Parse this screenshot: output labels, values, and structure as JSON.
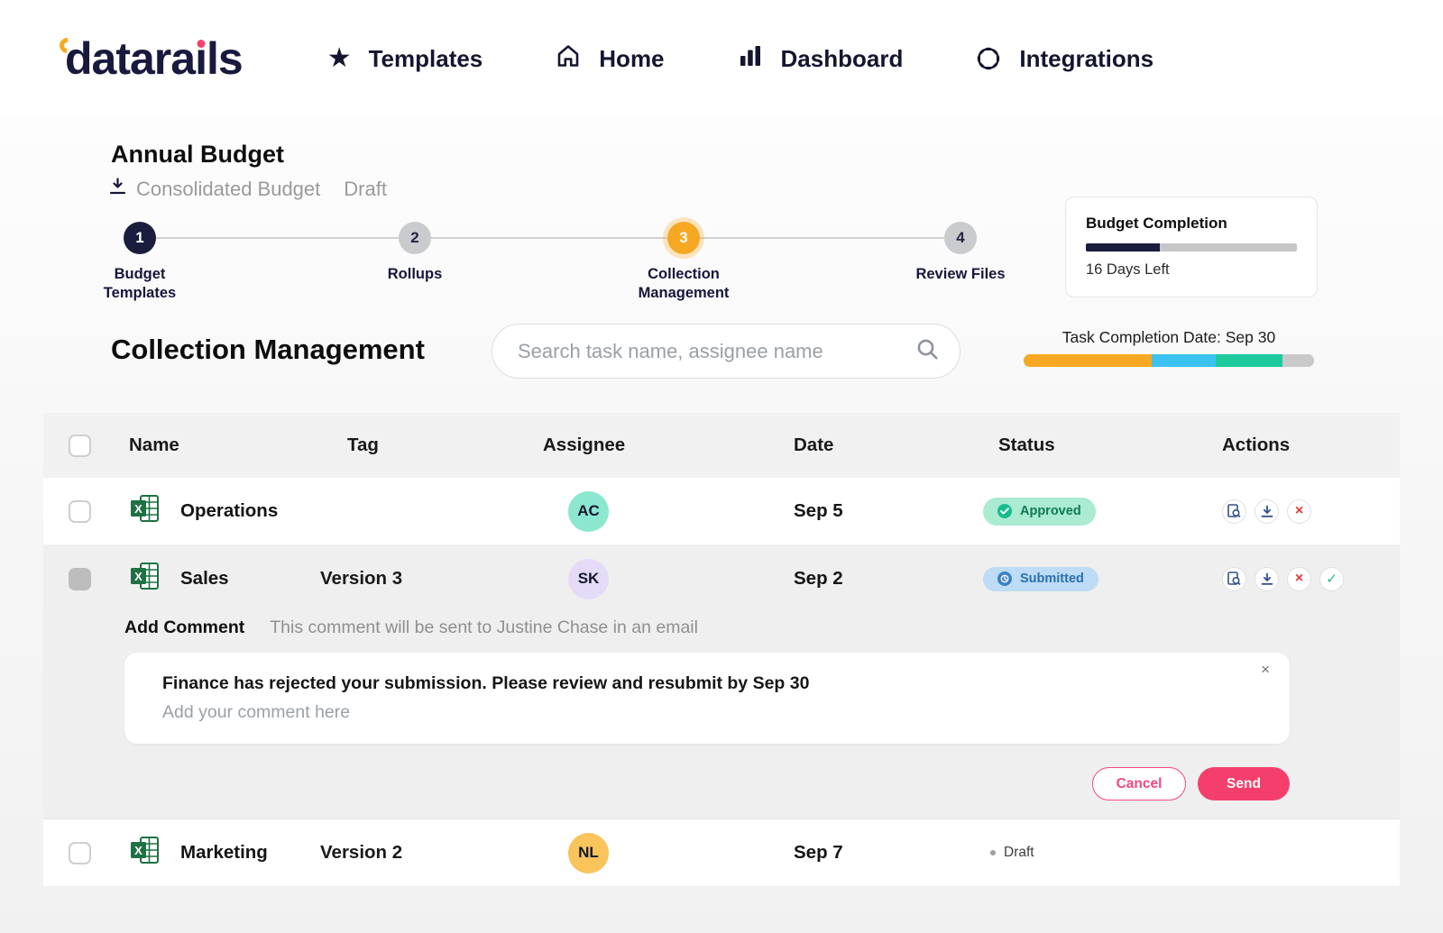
{
  "brand": {
    "name": "datarails"
  },
  "nav": {
    "items": [
      {
        "label": "Templates",
        "icon": "star-icon"
      },
      {
        "label": "Home",
        "icon": "home-icon"
      },
      {
        "label": "Dashboard",
        "icon": "bar-chart-icon"
      },
      {
        "label": "Integrations",
        "icon": "integrations-icon"
      }
    ]
  },
  "page": {
    "title": "Annual Budget",
    "subtitle": "Consolidated Budget",
    "subtitle_status": "Draft"
  },
  "stepper": {
    "steps": [
      {
        "number": "1",
        "label": "Budget Templates",
        "state": "done"
      },
      {
        "number": "2",
        "label": "Rollups",
        "state": "upcoming"
      },
      {
        "number": "3",
        "label": "Collection Management",
        "state": "active"
      },
      {
        "number": "4",
        "label": "Review Files",
        "state": "upcoming"
      }
    ]
  },
  "budget_completion": {
    "title": "Budget Completion",
    "days_left": "16 Days Left",
    "progress_percent": 35,
    "fill_color": "#1B1D3F",
    "track_color": "#C6C6C6"
  },
  "section": {
    "title": "Collection Management",
    "search_placeholder": "Search task name, assignee name",
    "task_completion_label": "Task Completion Date: Sep 30",
    "task_segments": [
      {
        "name": "orange",
        "color": "#F7A823",
        "percent": 44
      },
      {
        "name": "blue",
        "color": "#3BC2F0",
        "percent": 22
      },
      {
        "name": "green",
        "color": "#1EC99B",
        "percent": 23
      },
      {
        "name": "gray",
        "color": "#C9C9C9",
        "percent": 11
      }
    ]
  },
  "table": {
    "headers": {
      "name": "Name",
      "tag": "Tag",
      "assignee": "Assignee",
      "date": "Date",
      "status": "Status",
      "actions": "Actions"
    },
    "rows": [
      {
        "name": "Operations",
        "tag": "",
        "assignee_initials": "AC",
        "avatar_color": "#8BE7D0",
        "date": "Sep 5",
        "status": "Approved"
      },
      {
        "name": "Sales",
        "tag": "Version 3",
        "assignee_initials": "SK",
        "avatar_color": "#E4DCF6",
        "date": "Sep 2",
        "status": "Submitted"
      },
      {
        "name": "Marketing",
        "tag": "Version 2",
        "assignee_initials": "NL",
        "avatar_color": "#F8C45B",
        "date": "Sep 7",
        "status": "Draft"
      }
    ]
  },
  "comment_panel": {
    "title": "Add Comment",
    "hint": "This comment will be sent to Justine Chase in an email",
    "message": "Finance has rejected your submission. Please review and resubmit by Sep 30",
    "input_placeholder": "Add your comment here",
    "cancel_label": "Cancel",
    "send_label": "Send"
  }
}
